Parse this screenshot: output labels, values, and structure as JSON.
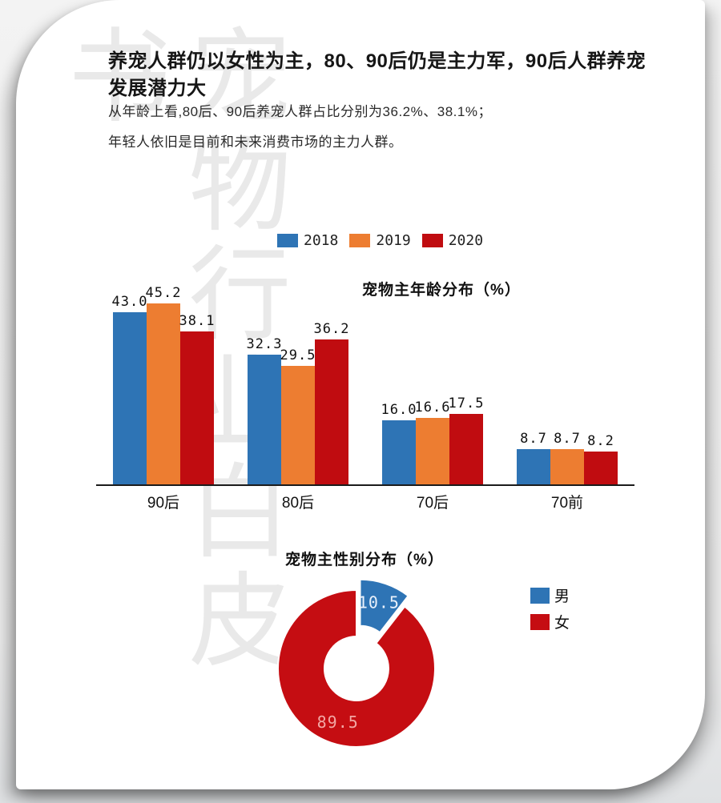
{
  "page": {
    "watermark": "宠物行业白皮书"
  },
  "header": {
    "title": "养宠人群仍以女性为主，80、90后仍是主力军，90后人群养宠发展潜力大",
    "body_lines": [
      "从年龄上看,80后、90后养宠人群占比分别为36.2%、38.1%；",
      "年轻人依旧是目前和未来消费市场的主力人群。"
    ]
  },
  "chart_data": [
    {
      "type": "bar",
      "title": "宠物主年龄分布（%）",
      "categories": [
        "90后",
        "80后",
        "70后",
        "70前"
      ],
      "series": [
        {
          "name": "2018",
          "color": "#2E74B5",
          "values": [
            43.0,
            32.3,
            16.0,
            8.7
          ]
        },
        {
          "name": "2019",
          "color": "#ED7D31",
          "values": [
            45.2,
            29.5,
            16.6,
            8.7
          ]
        },
        {
          "name": "2020",
          "color": "#C00C10",
          "values": [
            38.1,
            36.2,
            17.5,
            8.2
          ]
        }
      ],
      "ylim": [
        0,
        50
      ],
      "value_labels": true,
      "grid": false,
      "legend_position": "top",
      "axis_color": "#1b1b1b"
    },
    {
      "type": "pie",
      "subtype": "donut",
      "title": "宠物主性别分布（%）",
      "slices": [
        {
          "name": "男",
          "value": 10.5,
          "color": "#2E74B5",
          "label_color": "#e9f1fb",
          "exploded": true
        },
        {
          "name": "女",
          "value": 89.5,
          "color": "#C50D12",
          "label_color": "#f2a7a4",
          "exploded": false
        }
      ],
      "legend_position": "right",
      "start_angle_deg": 0,
      "grid": false
    }
  ]
}
